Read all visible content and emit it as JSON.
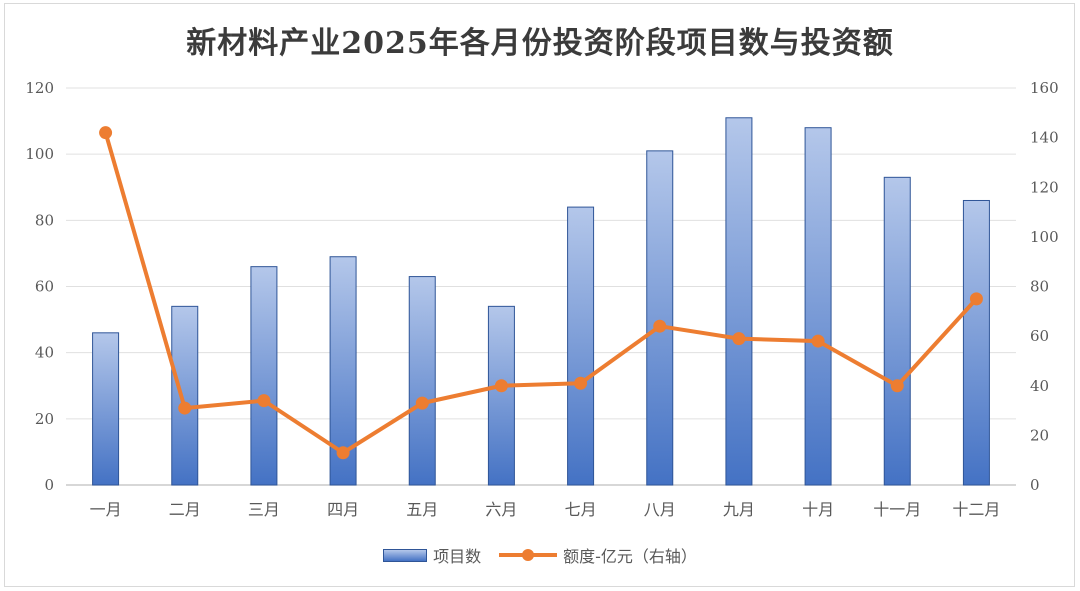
{
  "chart_data": {
    "type": "bar",
    "title": "新材料产业2025年各月份投资阶段项目数与投资额",
    "categories": [
      "一月",
      "二月",
      "三月",
      "四月",
      "五月",
      "六月",
      "七月",
      "八月",
      "九月",
      "十月",
      "十一月",
      "十二月"
    ],
    "series": [
      {
        "name": "项目数",
        "type": "bar",
        "axis": "left",
        "color": "#4472c4",
        "values": [
          46,
          54,
          66,
          69,
          63,
          54,
          84,
          101,
          111,
          108,
          93,
          86
        ]
      },
      {
        "name": "额度-亿元（右轴）",
        "type": "line",
        "axis": "right",
        "color": "#ed7d31",
        "values": [
          142,
          31,
          34,
          13,
          33,
          40,
          41,
          64,
          59,
          58,
          40,
          75
        ]
      }
    ],
    "y_left": {
      "range": [
        0,
        120
      ],
      "ticks": [
        "0",
        "20",
        "40",
        "60",
        "80",
        "100",
        "120"
      ]
    },
    "y_right": {
      "range": [
        0,
        160
      ],
      "ticks": [
        "0",
        "20",
        "40",
        "60",
        "80",
        "100",
        "120",
        "140",
        "160"
      ]
    },
    "grid": true,
    "legend_position": "bottom"
  }
}
